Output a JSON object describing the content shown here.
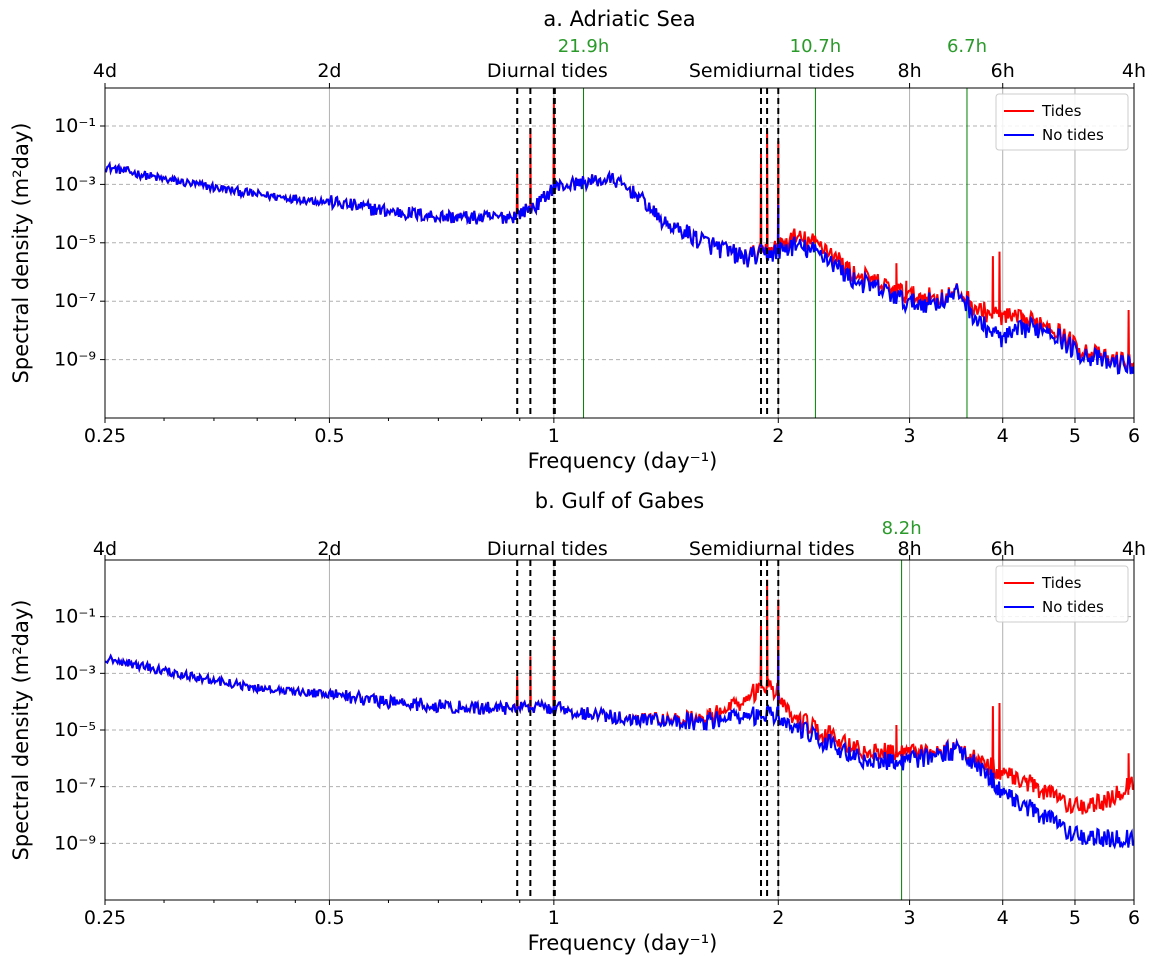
{
  "colors": {
    "tides": "#ff0000",
    "no_tides": "#0000ff",
    "period_marker": "#008000",
    "tidal_marker": "#000000"
  },
  "chart_data": [
    {
      "type": "line",
      "panel": "a",
      "title": "a. Adriatic Sea",
      "xlabel": "Frequency (day⁻¹)",
      "ylabel": "Spectral density (m²day)",
      "xscale": "log",
      "yscale": "log",
      "xlim": [
        0.25,
        6
      ],
      "ylim": [
        1e-11,
        2.0
      ],
      "x_ticks": [
        "0.25",
        "0.5",
        "1",
        "2",
        "3",
        "4",
        "5",
        "6"
      ],
      "y_ticks": [
        "10⁻¹",
        "10⁻³",
        "10⁻⁵",
        "10⁻⁷",
        "10⁻⁹"
      ],
      "top_ticks": [
        "4d",
        "2d",
        "8h",
        "6h",
        "4h"
      ],
      "band_labels": [
        "Diurnal tides",
        "Semidiurnal tides"
      ],
      "period_markers": [
        {
          "label": "21.9h",
          "freq": 1.096
        },
        {
          "label": "10.7h",
          "freq": 2.243
        },
        {
          "label": "6.7h",
          "freq": 3.582
        }
      ],
      "tidal_freqs": [
        0.893,
        0.93,
        1.0,
        1.003,
        1.896,
        1.932,
        2.0
      ],
      "legend": {
        "position": "top-right",
        "entries": [
          "Tides",
          "No tides"
        ]
      },
      "series": [
        {
          "name": "Tides",
          "points": [
            [
              0.25,
              0.004
            ],
            [
              0.3,
              0.0015
            ],
            [
              0.4,
              0.00045
            ],
            [
              0.5,
              0.00025
            ],
            [
              0.6,
              0.00012
            ],
            [
              0.7,
              8e-05
            ],
            [
              0.8,
              7e-05
            ],
            [
              0.88,
              8e-05
            ],
            [
              0.95,
              0.0002
            ],
            [
              1.0,
              0.0008
            ],
            [
              1.1,
              0.0012
            ],
            [
              1.2,
              0.0015
            ],
            [
              1.3,
              0.0004
            ],
            [
              1.4,
              5e-05
            ],
            [
              1.6,
              1e-05
            ],
            [
              1.8,
              3e-06
            ],
            [
              2.0,
              7e-06
            ],
            [
              2.1,
              1.5e-05
            ],
            [
              2.3,
              8e-06
            ],
            [
              2.5,
              1e-06
            ],
            [
              2.8,
              3e-07
            ],
            [
              3.0,
              1.5e-07
            ],
            [
              3.3,
              1.3e-07
            ],
            [
              3.5,
              2e-07
            ],
            [
              3.7,
              5e-08
            ],
            [
              4.0,
              3e-08
            ],
            [
              4.3,
              2e-08
            ],
            [
              4.6,
              1.8e-08
            ],
            [
              5.0,
              3e-09
            ],
            [
              5.5,
              1e-09
            ],
            [
              6.0,
              8e-10
            ]
          ],
          "peaks": [
            [
              0.893,
              0.0024
            ],
            [
              0.93,
              0.08
            ],
            [
              1.0,
              0.6
            ],
            [
              1.896,
              0.012
            ],
            [
              1.932,
              0.07
            ],
            [
              2.0,
              0.03
            ],
            [
              2.88,
              2e-06
            ],
            [
              2.97,
              5e-07
            ],
            [
              3.88,
              3.5e-06
            ],
            [
              3.96,
              5e-06
            ],
            [
              5.9,
              5e-08
            ]
          ]
        },
        {
          "name": "No tides",
          "points": [
            [
              0.25,
              0.004
            ],
            [
              0.3,
              0.0015
            ],
            [
              0.4,
              0.00045
            ],
            [
              0.5,
              0.00025
            ],
            [
              0.6,
              0.00012
            ],
            [
              0.7,
              8e-05
            ],
            [
              0.8,
              7e-05
            ],
            [
              0.88,
              8e-05
            ],
            [
              0.95,
              0.0002
            ],
            [
              1.0,
              0.0008
            ],
            [
              1.1,
              0.0012
            ],
            [
              1.2,
              0.0015
            ],
            [
              1.3,
              0.0004
            ],
            [
              1.4,
              5e-05
            ],
            [
              1.6,
              1e-05
            ],
            [
              1.8,
              3e-06
            ],
            [
              2.0,
              5e-06
            ],
            [
              2.1,
              8e-06
            ],
            [
              2.3,
              4e-06
            ],
            [
              2.5,
              6e-07
            ],
            [
              2.8,
              2e-07
            ],
            [
              3.0,
              8e-08
            ],
            [
              3.3,
              1e-07
            ],
            [
              3.5,
              2e-07
            ],
            [
              3.7,
              2e-08
            ],
            [
              4.0,
              5e-09
            ],
            [
              4.3,
              1.2e-08
            ],
            [
              4.6,
              1.2e-08
            ],
            [
              5.0,
              2e-09
            ],
            [
              5.5,
              8e-10
            ],
            [
              6.0,
              6e-10
            ]
          ],
          "peaks": [
            [
              1.0,
              0.0015
            ],
            [
              2.0,
              0.0002
            ]
          ]
        }
      ]
    },
    {
      "type": "line",
      "panel": "b",
      "title": "b. Gulf of Gabes",
      "xlabel": "Frequency (day⁻¹)",
      "ylabel": "Spectral density (m²day)",
      "xscale": "log",
      "yscale": "log",
      "xlim": [
        0.25,
        6
      ],
      "ylim": [
        1e-11,
        10.0
      ],
      "x_ticks": [
        "0.25",
        "0.5",
        "1",
        "2",
        "3",
        "4",
        "5",
        "6"
      ],
      "y_ticks": [
        "10⁻¹",
        "10⁻³",
        "10⁻⁵",
        "10⁻⁷",
        "10⁻⁹"
      ],
      "top_ticks": [
        "4d",
        "2d",
        "8h",
        "6h",
        "4h"
      ],
      "band_labels": [
        "Diurnal tides",
        "Semidiurnal tides"
      ],
      "period_markers": [
        {
          "label": "8.2h",
          "freq": 2.927
        }
      ],
      "tidal_freqs": [
        0.893,
        0.93,
        1.0,
        1.003,
        1.896,
        1.932,
        2.0
      ],
      "legend": {
        "position": "top-right",
        "entries": [
          "Tides",
          "No tides"
        ]
      },
      "series": [
        {
          "name": "Tides",
          "points": [
            [
              0.25,
              0.0035
            ],
            [
              0.3,
              0.0012
            ],
            [
              0.4,
              0.0003
            ],
            [
              0.5,
              0.00018
            ],
            [
              0.6,
              0.0001
            ],
            [
              0.7,
              7e-05
            ],
            [
              0.8,
              6e-05
            ],
            [
              0.88,
              6e-05
            ],
            [
              0.95,
              6e-05
            ],
            [
              1.0,
              6e-05
            ],
            [
              1.1,
              4e-05
            ],
            [
              1.2,
              3e-05
            ],
            [
              1.4,
              2.2e-05
            ],
            [
              1.6,
              2.5e-05
            ],
            [
              1.8,
              0.0001
            ],
            [
              1.9,
              0.0004
            ],
            [
              2.0,
              0.0002
            ],
            [
              2.1,
              3e-05
            ],
            [
              2.3,
              8e-06
            ],
            [
              2.6,
              2e-06
            ],
            [
              2.9,
              1.5e-06
            ],
            [
              3.2,
              1.5e-06
            ],
            [
              3.5,
              2e-06
            ],
            [
              3.8,
              6e-07
            ],
            [
              4.0,
              3e-07
            ],
            [
              4.3,
              1.5e-07
            ],
            [
              4.6,
              6e-08
            ],
            [
              5.0,
              2e-08
            ],
            [
              5.5,
              3e-08
            ],
            [
              6.0,
              1.5e-07
            ]
          ],
          "peaks": [
            [
              0.893,
              0.0008
            ],
            [
              0.93,
              0.004
            ],
            [
              1.0,
              0.02
            ],
            [
              1.896,
              0.05
            ],
            [
              1.932,
              2.0
            ],
            [
              2.0,
              0.4
            ],
            [
              2.88,
              1.5e-05
            ],
            [
              3.88,
              7e-05
            ],
            [
              3.96,
              9e-05
            ],
            [
              5.9,
              1.5e-06
            ]
          ]
        },
        {
          "name": "No tides",
          "points": [
            [
              0.25,
              0.0035
            ],
            [
              0.3,
              0.0012
            ],
            [
              0.4,
              0.0003
            ],
            [
              0.5,
              0.00018
            ],
            [
              0.6,
              0.0001
            ],
            [
              0.7,
              7e-05
            ],
            [
              0.8,
              6e-05
            ],
            [
              0.88,
              6e-05
            ],
            [
              0.95,
              6e-05
            ],
            [
              1.0,
              6e-05
            ],
            [
              1.1,
              4e-05
            ],
            [
              1.2,
              3e-05
            ],
            [
              1.4,
              2e-05
            ],
            [
              1.6,
              2e-05
            ],
            [
              1.8,
              3e-05
            ],
            [
              1.9,
              3.5e-05
            ],
            [
              2.0,
              3e-05
            ],
            [
              2.1,
              1.5e-05
            ],
            [
              2.3,
              4e-06
            ],
            [
              2.6,
              1e-06
            ],
            [
              2.9,
              7e-07
            ],
            [
              3.2,
              1.2e-06
            ],
            [
              3.5,
              2e-06
            ],
            [
              3.8,
              3e-07
            ],
            [
              4.0,
              6e-08
            ],
            [
              4.3,
              2e-08
            ],
            [
              4.6,
              8e-09
            ],
            [
              5.0,
              2e-09
            ],
            [
              5.5,
              1.5e-09
            ],
            [
              6.0,
              1.5e-09
            ]
          ],
          "peaks": [
            [
              1.0,
              8e-05
            ],
            [
              2.0,
              0.005
            ]
          ]
        }
      ]
    }
  ]
}
